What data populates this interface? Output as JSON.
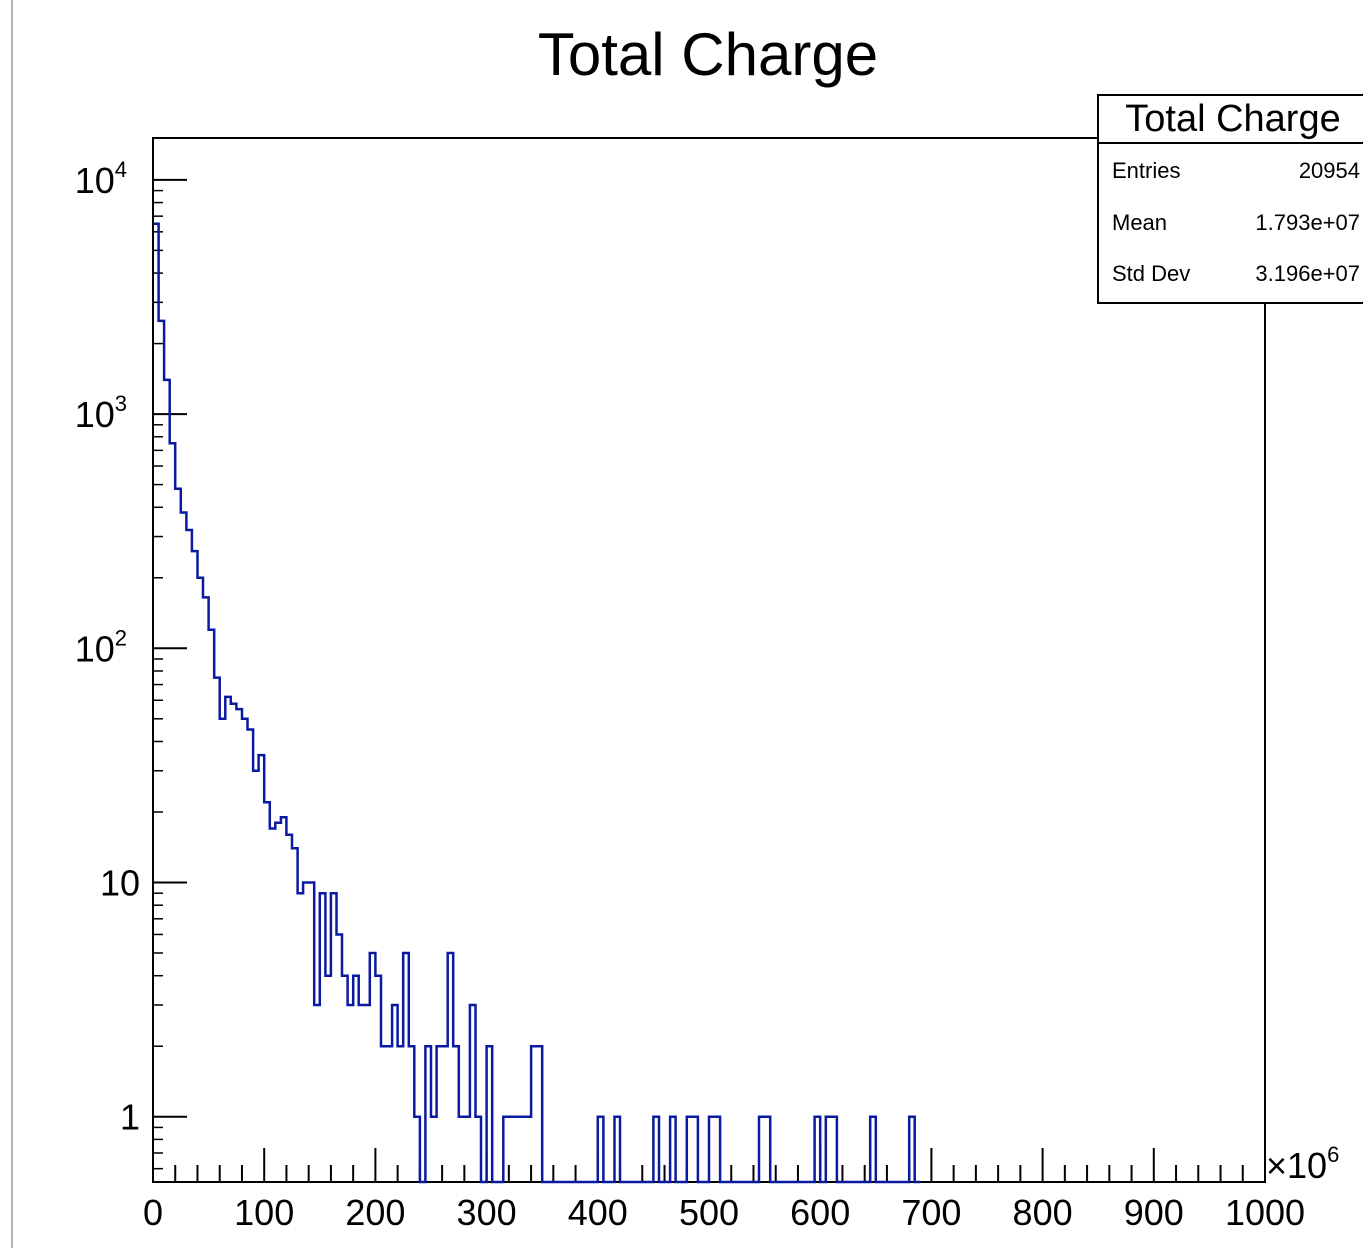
{
  "chart_data": {
    "type": "histogram",
    "title": "Total Charge",
    "xlabel": "",
    "ylabel": "",
    "x_multiplier": "×10",
    "x_multiplier_exponent": "6",
    "xlim": [
      0,
      1000
    ],
    "ylim": [
      0.5,
      15000
    ],
    "y_scale": "log",
    "grid": false,
    "line_color": "#0a1aa0",
    "bin_width": 5,
    "x_ticks": [
      {
        "value": 0,
        "label": "0"
      },
      {
        "value": 100,
        "label": "100"
      },
      {
        "value": 200,
        "label": "200"
      },
      {
        "value": 300,
        "label": "300"
      },
      {
        "value": 400,
        "label": "400"
      },
      {
        "value": 500,
        "label": "500"
      },
      {
        "value": 600,
        "label": "600"
      },
      {
        "value": 700,
        "label": "700"
      },
      {
        "value": 800,
        "label": "800"
      },
      {
        "value": 900,
        "label": "900"
      },
      {
        "value": 1000,
        "label": "1000"
      }
    ],
    "y_ticks": [
      {
        "value": 1,
        "base": "1",
        "exp": ""
      },
      {
        "value": 10,
        "base": "10",
        "exp": ""
      },
      {
        "value": 100,
        "base": "10",
        "exp": "2"
      },
      {
        "value": 1000,
        "base": "10",
        "exp": "3"
      },
      {
        "value": 10000,
        "base": "10",
        "exp": "4"
      }
    ],
    "stats_box": {
      "title": "Total Charge",
      "rows": [
        {
          "label": "Entries",
          "value": "20954"
        },
        {
          "label": "Mean",
          "value": "1.793e+07"
        },
        {
          "label": "Std Dev",
          "value": "3.196e+07"
        }
      ]
    },
    "bins_low": [
      0,
      5,
      10,
      15,
      20,
      25,
      30,
      35,
      40,
      45,
      50,
      55,
      60,
      65,
      70,
      75,
      80,
      85,
      90,
      95,
      100,
      105,
      110,
      115,
      120,
      125,
      130,
      135,
      140,
      145,
      150,
      155,
      160,
      165,
      170,
      175,
      180,
      185,
      190,
      195,
      200,
      205,
      210,
      215,
      220,
      225,
      230,
      235,
      240,
      245,
      250,
      255,
      260,
      265,
      270,
      275,
      280,
      285,
      290,
      295,
      300,
      305,
      310,
      315,
      320,
      325,
      330,
      335,
      340,
      345,
      350,
      355,
      360,
      365,
      370,
      375,
      380,
      385,
      390,
      395,
      400,
      405,
      410,
      415,
      420,
      425,
      430,
      435,
      440,
      445,
      450,
      455,
      460,
      465,
      470,
      475,
      480,
      485,
      490,
      495,
      500,
      505,
      510,
      515,
      520,
      525,
      530,
      535,
      540,
      545,
      550,
      555,
      560,
      565,
      570,
      575,
      580,
      585,
      590,
      595,
      600,
      605,
      610,
      615,
      620,
      625,
      630,
      635,
      640,
      645,
      650,
      655,
      660,
      665,
      670,
      675,
      680,
      685
    ],
    "counts": [
      6500,
      2500,
      1400,
      750,
      480,
      380,
      320,
      260,
      200,
      165,
      120,
      75,
      50,
      62,
      58,
      55,
      50,
      45,
      30,
      35,
      22,
      17,
      18,
      19,
      16,
      14,
      9,
      10,
      10,
      3,
      9,
      4,
      9,
      6,
      4,
      3,
      4,
      3,
      3,
      5,
      4,
      2,
      2,
      3,
      2,
      5,
      2,
      1,
      0,
      2,
      1,
      2,
      2,
      5,
      2,
      1,
      1,
      3,
      1,
      0,
      2,
      0,
      0,
      1,
      1,
      1,
      1,
      1,
      2,
      2,
      0,
      0,
      0,
      0,
      0,
      0,
      0,
      0,
      0,
      0,
      1,
      0,
      0,
      1,
      0,
      0,
      0,
      0,
      0,
      0,
      1,
      0,
      0,
      1,
      0,
      0,
      1,
      1,
      0,
      0,
      1,
      1,
      0,
      0,
      0,
      0,
      0,
      0,
      0,
      1,
      1,
      0,
      0,
      0,
      0,
      0,
      0,
      0,
      0,
      1,
      0,
      1,
      1,
      0,
      0,
      0,
      0,
      0,
      0,
      1,
      0,
      0,
      0,
      0,
      0,
      0,
      1,
      0
    ]
  }
}
